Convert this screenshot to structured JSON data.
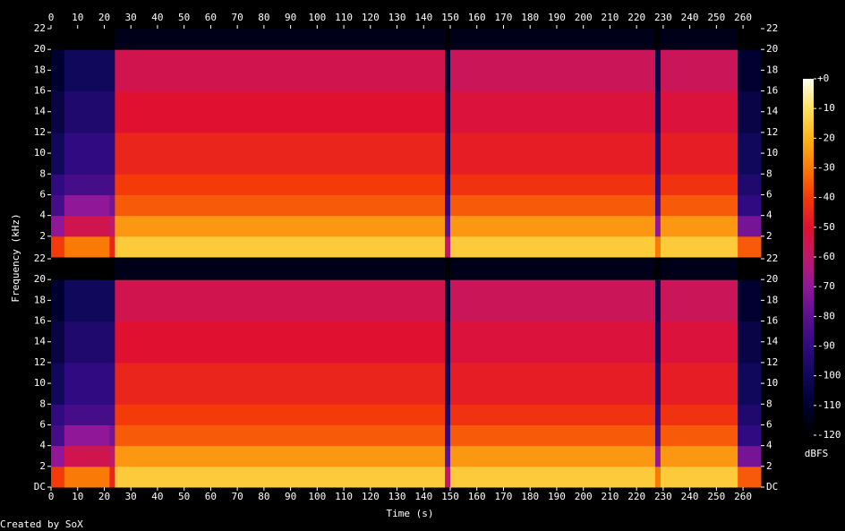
{
  "chart_data": {
    "type": "heatmap",
    "xlabel": "Time (s)",
    "ylabel": "Frequency (kHz)",
    "xlim": [
      0,
      266.7
    ],
    "xticks": [
      0,
      10,
      20,
      30,
      40,
      50,
      60,
      70,
      80,
      90,
      100,
      110,
      120,
      130,
      140,
      150,
      160,
      170,
      180,
      190,
      200,
      210,
      220,
      230,
      240,
      250,
      260
    ],
    "x_bins": [
      0,
      5,
      22,
      24,
      148,
      150,
      227,
      229,
      258,
      266.7
    ],
    "y_bins": [
      0,
      2,
      4,
      6,
      8,
      12,
      16,
      20,
      22
    ],
    "panels": [
      {
        "ylim": [
          0,
          22
        ],
        "yticks": [
          2,
          4,
          6,
          8,
          10,
          12,
          14,
          16,
          18,
          20,
          22
        ],
        "values": [
          [
            -40,
            -30,
            -45,
            -15,
            -60,
            -15,
            -30,
            -15,
            -35
          ],
          [
            -70,
            -55,
            -60,
            -25,
            -80,
            -25,
            -70,
            -25,
            -75
          ],
          [
            -85,
            -70,
            -75,
            -35,
            -90,
            -35,
            -85,
            -35,
            -90
          ],
          [
            -90,
            -85,
            -85,
            -40,
            -95,
            -42,
            -90,
            -42,
            -95
          ],
          [
            -100,
            -90,
            -90,
            -45,
            -100,
            -47,
            -95,
            -47,
            -100
          ],
          [
            -105,
            -95,
            -95,
            -50,
            -105,
            -52,
            -100,
            -52,
            -105
          ],
          [
            -110,
            -100,
            -100,
            -55,
            -110,
            -57,
            -105,
            -57,
            -110
          ],
          [
            -120,
            -120,
            -120,
            -115,
            -120,
            -115,
            -120,
            -115,
            -120
          ]
        ]
      },
      {
        "ylim": [
          0,
          22
        ],
        "yticks": [
          {
            "value": 0,
            "label": "DC"
          },
          2,
          4,
          6,
          8,
          10,
          12,
          14,
          16,
          18,
          20,
          22
        ],
        "values": [
          [
            -40,
            -30,
            -45,
            -15,
            -60,
            -15,
            -30,
            -15,
            -35
          ],
          [
            -70,
            -55,
            -60,
            -25,
            -80,
            -25,
            -70,
            -25,
            -75
          ],
          [
            -85,
            -70,
            -75,
            -35,
            -90,
            -35,
            -85,
            -35,
            -90
          ],
          [
            -90,
            -85,
            -85,
            -40,
            -95,
            -42,
            -90,
            -42,
            -95
          ],
          [
            -100,
            -90,
            -90,
            -45,
            -100,
            -47,
            -95,
            -47,
            -100
          ],
          [
            -105,
            -95,
            -95,
            -50,
            -105,
            -52,
            -100,
            -52,
            -105
          ],
          [
            -110,
            -100,
            -100,
            -55,
            -110,
            -57,
            -105,
            -57,
            -110
          ],
          [
            -120,
            -120,
            -120,
            -115,
            -120,
            -115,
            -120,
            -115,
            -120
          ]
        ]
      }
    ],
    "colorbar": {
      "label": "dBFS",
      "lim": [
        -120,
        0
      ],
      "ticks": [
        {
          "value": 0,
          "label": "+0"
        },
        -10,
        -20,
        -30,
        -40,
        -50,
        -60,
        -70,
        -80,
        -90,
        -100,
        -110,
        -120
      ],
      "colors": [
        "#000000",
        "#000030",
        "#10085a",
        "#300a80",
        "#5a1090",
        "#901898",
        "#c0186a",
        "#e01030",
        "#f43a08",
        "#fa7a08",
        "#fcb418",
        "#fee060",
        "#fffff0"
      ]
    }
  },
  "footer": "Created by SoX"
}
